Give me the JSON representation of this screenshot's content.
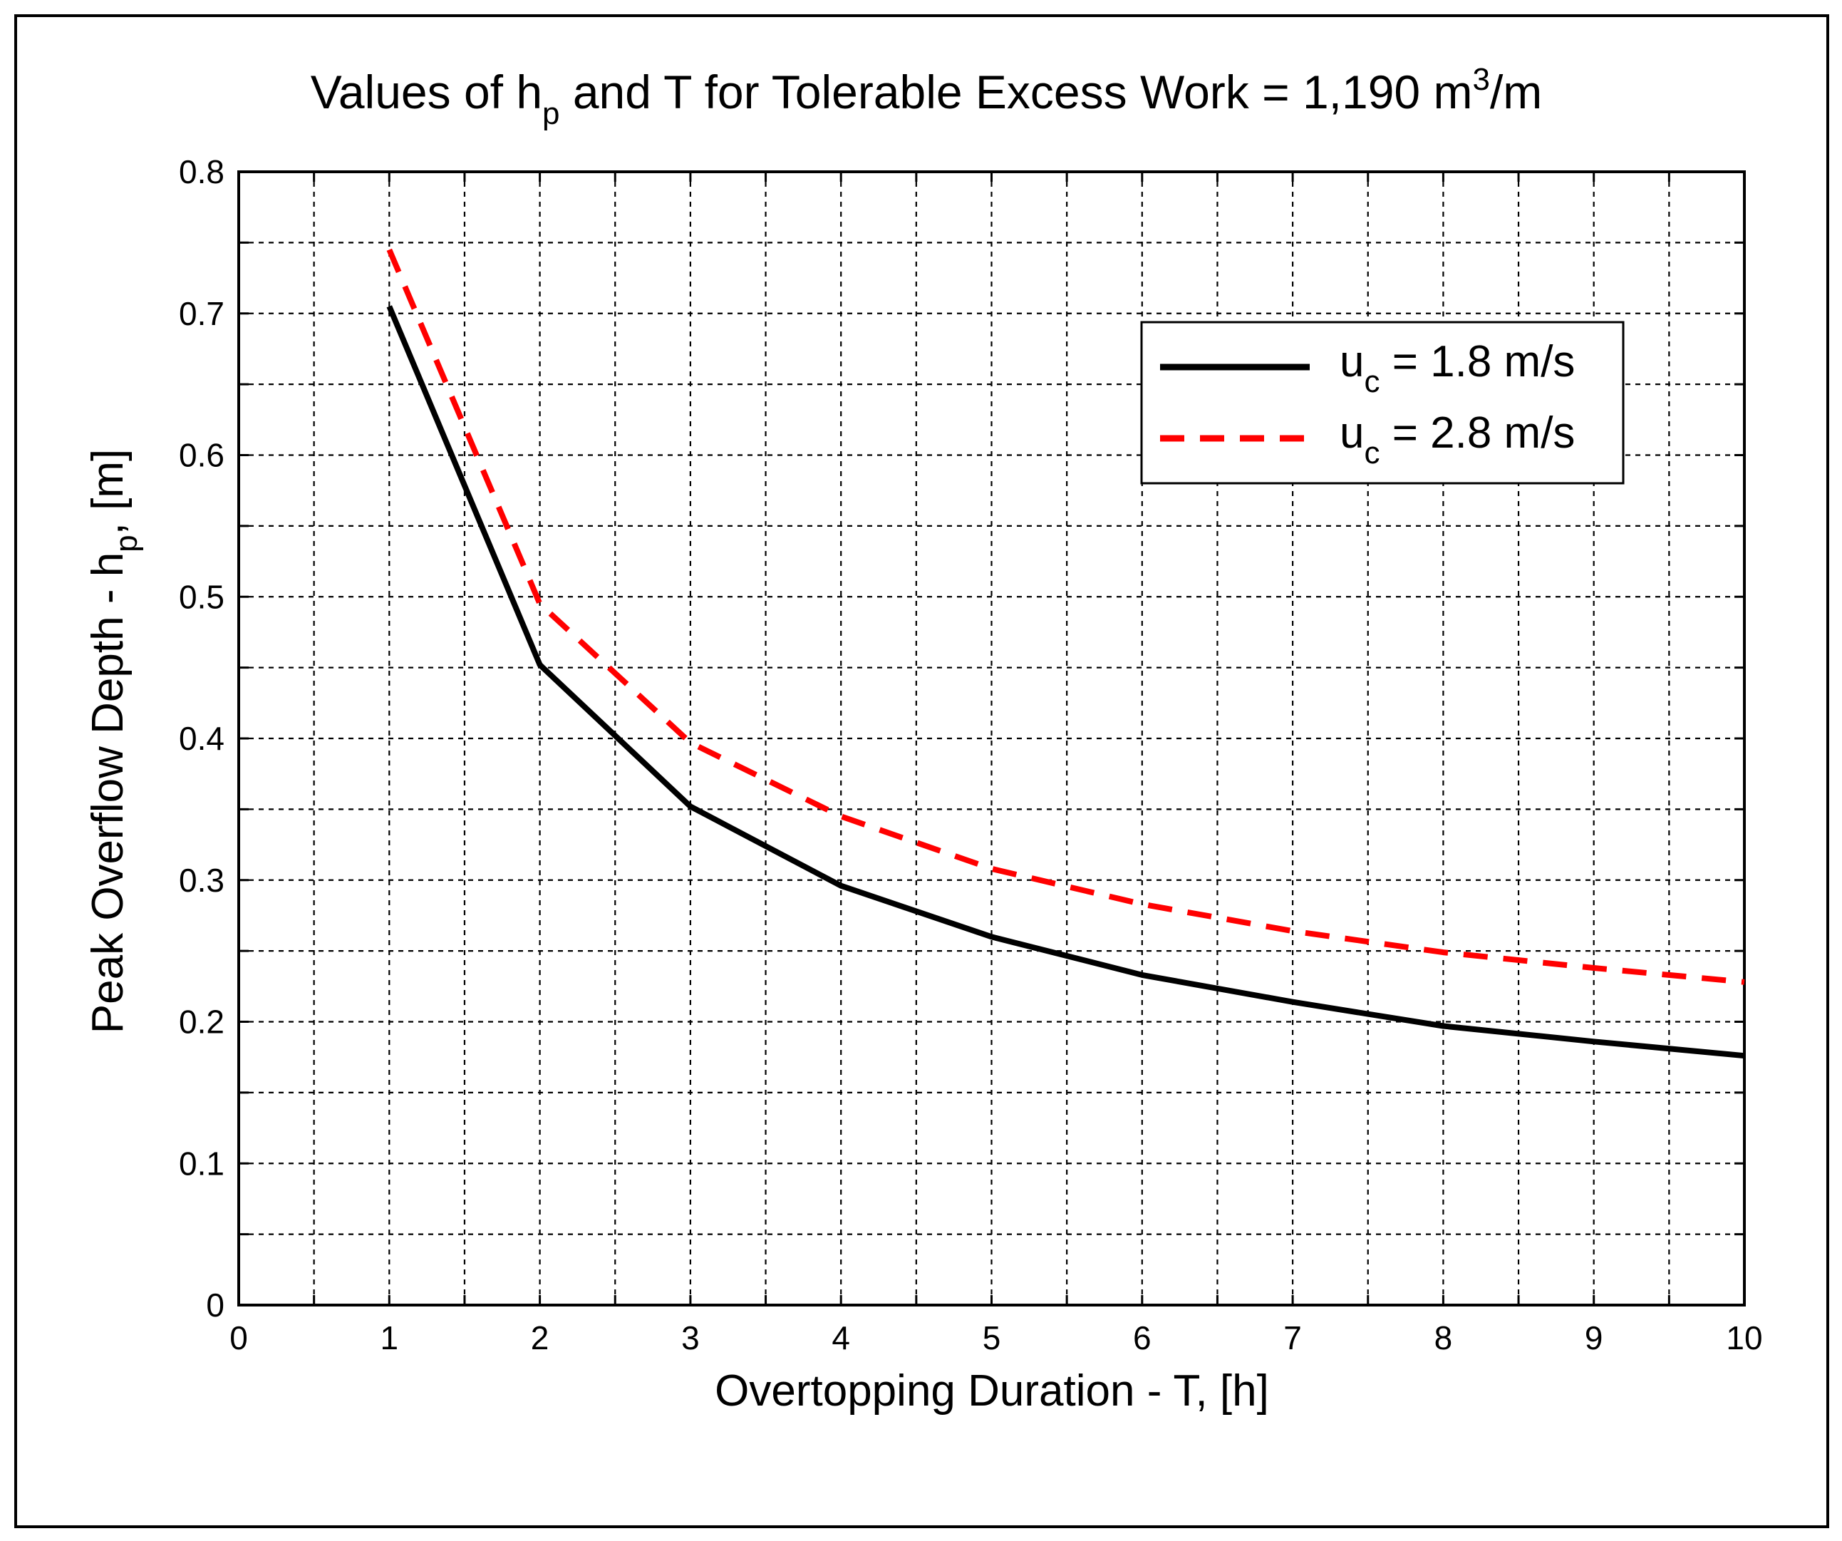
{
  "chart_data": {
    "type": "line",
    "title": {
      "prefix": "Values of h",
      "sub": "p",
      "middle": " and T for Tolerable Excess Work = 1,190 m",
      "sup": "3",
      "suffix": "/m"
    },
    "xlabel": "Overtopping Duration - T,  [h]",
    "ylabel": {
      "prefix": "Peak Overflow Depth - h",
      "sub": "p",
      "suffix": ",  [m]"
    },
    "xlim": [
      0,
      10
    ],
    "ylim": [
      0,
      0.8
    ],
    "xticks": [
      0,
      1,
      2,
      3,
      4,
      5,
      6,
      7,
      8,
      9,
      10
    ],
    "yticks": [
      0,
      0.1,
      0.2,
      0.3,
      0.4,
      0.5,
      0.6,
      0.7,
      0.8
    ],
    "xtick_labels": [
      "0",
      "1",
      "2",
      "3",
      "4",
      "5",
      "6",
      "7",
      "8",
      "9",
      "10"
    ],
    "ytick_labels": [
      "0",
      "0.1",
      "0.2",
      "0.3",
      "0.4",
      "0.5",
      "0.6",
      "0.7",
      "0.8"
    ],
    "xgrid_minor": 0.5,
    "ygrid_minor": 0.05,
    "grid": true,
    "legend_position": "top-right",
    "series": [
      {
        "name": "u_c = 1.8 m/s",
        "legend_main": "u",
        "legend_sub": "c",
        "legend_rest": " = 1.8 m/s",
        "color": "#000000",
        "style": "solid",
        "x": [
          1,
          2,
          3,
          4,
          5,
          6,
          7,
          8,
          9,
          10
        ],
        "values": [
          0.705,
          0.452,
          0.352,
          0.296,
          0.26,
          0.233,
          0.214,
          0.197,
          0.186,
          0.176
        ]
      },
      {
        "name": "u_c = 2.8 m/s",
        "legend_main": "u",
        "legend_sub": "c",
        "legend_rest": " = 2.8 m/s",
        "color": "#ff0000",
        "style": "dashed",
        "x": [
          1,
          2,
          3,
          4,
          5,
          6,
          7,
          8,
          9,
          10
        ],
        "values": [
          0.745,
          0.495,
          0.397,
          0.345,
          0.308,
          0.283,
          0.264,
          0.249,
          0.238,
          0.228
        ]
      }
    ]
  }
}
